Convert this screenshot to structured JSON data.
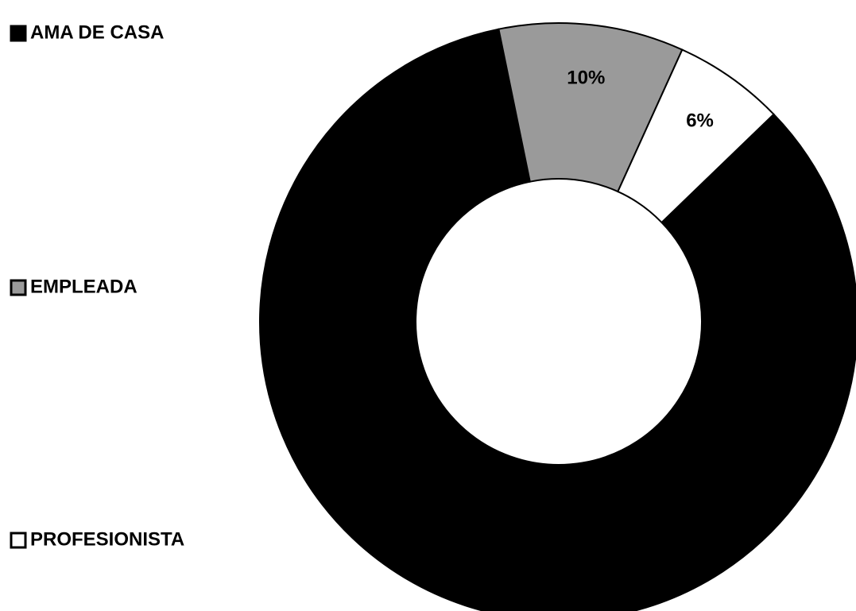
{
  "chart_data": {
    "type": "donut",
    "categories": [
      "AMA DE CASA",
      "EMPLEADA",
      "PROFESIONISTA"
    ],
    "values": [
      84,
      10,
      6
    ],
    "value_labels": [
      null,
      "10%",
      "6%"
    ],
    "colors": [
      "#000000",
      "#9a9a9a",
      "#ffffff"
    ],
    "legend": "left"
  }
}
